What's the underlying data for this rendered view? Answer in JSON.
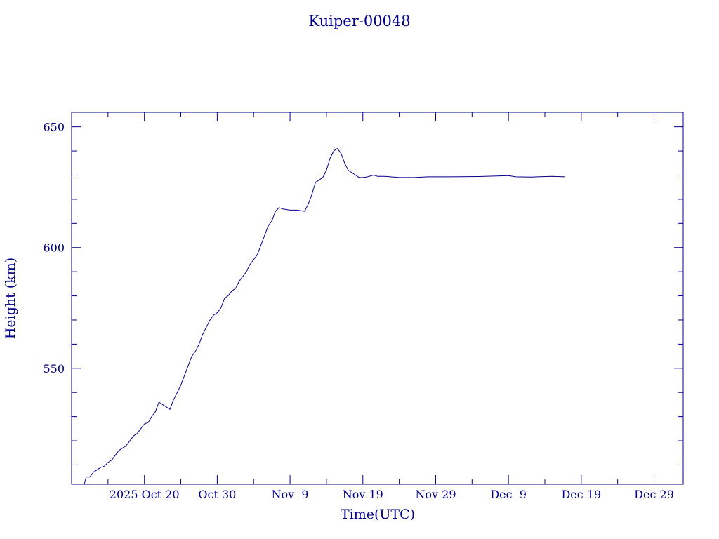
{
  "chart_data": {
    "type": "line",
    "title": "Kuiper-00048",
    "xlabel": "Time(UTC)",
    "ylabel": "Height (km)",
    "color": "#00008b",
    "background": "#ffffff",
    "grid": false,
    "x_range": [
      "2025-10-10T00:00",
      "2026-01-02T00:00"
    ],
    "ylim": [
      502,
      656
    ],
    "x_ticks": [
      {
        "date": "2025-10-20",
        "label": "2025 Oct 20"
      },
      {
        "date": "2025-10-30",
        "label": "Oct 30"
      },
      {
        "date": "2025-11-09",
        "label": "Nov  9"
      },
      {
        "date": "2025-11-19",
        "label": "Nov 19"
      },
      {
        "date": "2025-11-29",
        "label": "Nov 29"
      },
      {
        "date": "2025-12-09",
        "label": "Dec  9"
      },
      {
        "date": "2025-12-19",
        "label": "Dec 19"
      },
      {
        "date": "2025-12-29",
        "label": "Dec 29"
      }
    ],
    "y_ticks": [
      {
        "value": 550,
        "label": "550"
      },
      {
        "value": 600,
        "label": "600"
      },
      {
        "value": 650,
        "label": "650"
      }
    ],
    "series": [
      {
        "x": [
          "2025-10-11T18:00",
          "2025-10-12T00:00",
          "2025-10-12T12:00",
          "2025-10-13T00:00",
          "2025-10-13T12:00",
          "2025-10-14T00:00",
          "2025-10-14T12:00",
          "2025-10-15T00:00",
          "2025-10-15T12:00",
          "2025-10-16T00:00",
          "2025-10-16T12:00",
          "2025-10-17T00:00",
          "2025-10-17T12:00",
          "2025-10-18T00:00",
          "2025-10-18T12:00",
          "2025-10-19T00:00",
          "2025-10-19T12:00",
          "2025-10-20T00:00",
          "2025-10-20T12:00",
          "2025-10-21T00:00",
          "2025-10-21T12:00",
          "2025-10-22T00:00",
          "2025-10-22T12:00",
          "2025-10-23T00:00",
          "2025-10-23T12:00",
          "2025-10-24T00:00",
          "2025-10-24T12:00",
          "2025-10-25T00:00",
          "2025-10-25T12:00",
          "2025-10-26T00:00",
          "2025-10-26T12:00",
          "2025-10-27T00:00",
          "2025-10-27T12:00",
          "2025-10-28T00:00",
          "2025-10-28T12:00",
          "2025-10-29T00:00",
          "2025-10-29T12:00",
          "2025-10-30T00:00",
          "2025-10-30T12:00",
          "2025-10-31T00:00",
          "2025-10-31T12:00",
          "2025-11-01T00:00",
          "2025-11-01T12:00",
          "2025-11-02T00:00",
          "2025-11-02T12:00",
          "2025-11-03T00:00",
          "2025-11-03T12:00",
          "2025-11-04T00:00",
          "2025-11-04T12:00",
          "2025-11-05T00:00",
          "2025-11-05T12:00",
          "2025-11-06T00:00",
          "2025-11-06T12:00",
          "2025-11-07T00:00",
          "2025-11-07T12:00",
          "2025-11-08T00:00",
          "2025-11-09T00:00",
          "2025-11-10T00:00",
          "2025-11-11T00:00",
          "2025-11-11T12:00",
          "2025-11-12T00:00",
          "2025-11-12T12:00",
          "2025-11-13T00:00",
          "2025-11-13T12:00",
          "2025-11-14T00:00",
          "2025-11-14T12:00",
          "2025-11-15T00:00",
          "2025-11-15T12:00",
          "2025-11-16T00:00",
          "2025-11-16T12:00",
          "2025-11-17T00:00",
          "2025-11-17T12:00",
          "2025-11-18T00:00",
          "2025-11-18T12:00",
          "2025-11-19T00:00",
          "2025-11-19T12:00",
          "2025-11-20T00:00",
          "2025-11-20T12:00",
          "2025-11-21T00:00",
          "2025-11-22T00:00",
          "2025-11-24T00:00",
          "2025-11-25T00:00",
          "2025-11-26T00:00",
          "2025-11-28T00:00",
          "2025-12-01T00:00",
          "2025-12-05T00:00",
          "2025-12-09T00:00",
          "2025-12-10T00:00",
          "2025-12-12T00:00",
          "2025-12-15T00:00",
          "2025-12-16T18:00"
        ],
        "y": [
          502,
          505,
          505,
          507,
          508,
          509,
          509.5,
          511,
          512,
          514,
          516,
          517,
          518,
          520,
          522,
          523,
          525,
          527,
          527.5,
          530,
          532,
          536,
          535,
          534,
          533,
          537,
          540,
          543,
          547,
          551,
          555,
          557,
          560,
          564,
          567,
          570,
          572,
          573,
          575,
          579,
          580,
          582,
          583,
          586,
          588,
          590,
          593,
          595,
          597,
          601,
          605,
          609,
          611,
          615,
          616.5,
          616,
          615.5,
          615.5,
          615,
          618,
          622,
          627,
          628,
          629,
          632,
          637,
          640,
          641,
          639,
          635,
          632,
          631,
          630,
          629,
          629,
          629.2,
          629.6,
          630,
          629.5,
          629.5,
          629,
          629,
          629,
          629.3,
          629.3,
          629.4,
          629.8,
          629.3,
          629.2,
          629.5,
          629.3
        ]
      }
    ]
  }
}
